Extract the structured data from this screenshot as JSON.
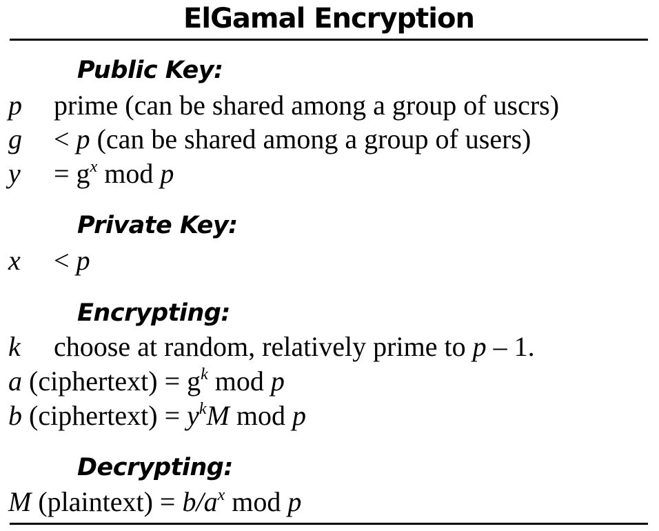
{
  "title": "ElGamal Encryption",
  "public_key": {
    "heading": "Public Key:",
    "p_var": "p",
    "p_desc": "prime (can be shared among a group of uscrs)",
    "g_var": "g",
    "g_rel": "<",
    "g_p": "p",
    "g_desc": "(can be shared among a group of users)",
    "y_var": "y",
    "y_eq": "= g",
    "y_exp": "x",
    "y_mod": " mod ",
    "y_p": "p"
  },
  "private_key": {
    "heading": "Private Key:",
    "x_var": "x",
    "x_rel": "<",
    "x_p": "p"
  },
  "encrypting": {
    "heading": "Encrypting:",
    "k_var": "k",
    "k_desc": "choose at random, relatively prime to ",
    "k_p": "p",
    "k_tail": " – 1.",
    "a_var": "a",
    "a_text": " (ciphertext) = g",
    "a_exp": "k",
    "a_mod": " mod ",
    "a_p": "p",
    "b_var": "b",
    "b_text": " (ciphertext) = ",
    "b_y": "y",
    "b_exp": "k",
    "b_M": "M",
    "b_mod": " mod ",
    "b_p": "p"
  },
  "decrypting": {
    "heading": "Decrypting:",
    "M_var": "M",
    "M_text": " (plaintext) = ",
    "M_expr": "b/a",
    "M_exp": "x",
    "M_mod": " mod ",
    "M_p": "p"
  }
}
